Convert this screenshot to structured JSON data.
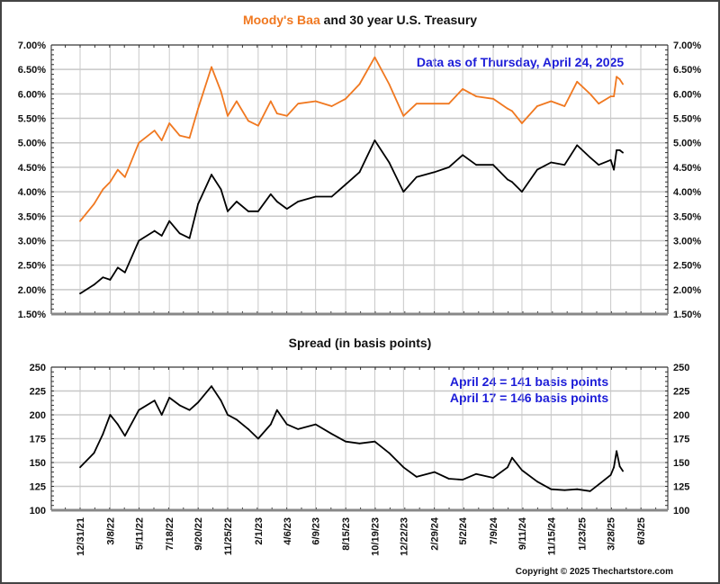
{
  "chart_data": [
    {
      "type": "line",
      "title_parts": [
        "Moody's Baa",
        " and 30 year U.S. Treasury"
      ],
      "annotation": "Data as of Thursday, April 24, 2025",
      "ylim": [
        1.5,
        7.0
      ],
      "yticks": [
        "1.50%",
        "2.00%",
        "2.50%",
        "3.00%",
        "3.50%",
        "4.00%",
        "4.50%",
        "5.00%",
        "5.50%",
        "6.00%",
        "6.50%",
        "7.00%"
      ],
      "grid": true,
      "x": [
        "2021-12-31",
        "2022-01-31",
        "2022-02-20",
        "2022-03-08",
        "2022-03-25",
        "2022-04-10",
        "2022-05-11",
        "2022-06-15",
        "2022-07-01",
        "2022-07-18",
        "2022-08-10",
        "2022-09-01",
        "2022-09-20",
        "2022-10-20",
        "2022-11-10",
        "2022-11-25",
        "2022-12-15",
        "2023-01-10",
        "2023-02-01",
        "2023-03-01",
        "2023-03-15",
        "2023-04-06",
        "2023-05-01",
        "2023-06-09",
        "2023-07-15",
        "2023-08-15",
        "2023-09-15",
        "2023-10-19",
        "2023-11-20",
        "2023-12-22",
        "2024-01-20",
        "2024-02-29",
        "2024-04-01",
        "2024-05-02",
        "2024-06-01",
        "2024-07-09",
        "2024-08-10",
        "2024-08-20",
        "2024-09-11",
        "2024-10-15",
        "2024-11-15",
        "2024-12-15",
        "2025-01-12",
        "2025-02-10",
        "2025-03-01",
        "2025-03-28",
        "2025-04-04",
        "2025-04-10",
        "2025-04-17",
        "2025-04-24"
      ],
      "series": [
        {
          "name": "Moody's Baa",
          "color": "#f07820",
          "values": [
            3.4,
            3.75,
            4.05,
            4.2,
            4.45,
            4.3,
            5.0,
            5.25,
            5.05,
            5.4,
            5.15,
            5.1,
            5.7,
            6.55,
            6.05,
            5.55,
            5.85,
            5.45,
            5.35,
            5.85,
            5.6,
            5.55,
            5.8,
            5.85,
            5.75,
            5.9,
            6.2,
            6.75,
            6.2,
            5.55,
            5.8,
            5.8,
            5.8,
            6.1,
            5.95,
            5.9,
            5.7,
            5.65,
            5.4,
            5.75,
            5.85,
            5.75,
            6.25,
            6.0,
            5.8,
            5.95,
            5.95,
            6.35,
            6.3,
            6.2
          ]
        },
        {
          "name": "30 year U.S. Treasury",
          "color": "#000000",
          "values": [
            1.92,
            2.1,
            2.25,
            2.2,
            2.45,
            2.35,
            3.0,
            3.2,
            3.1,
            3.4,
            3.15,
            3.05,
            3.75,
            4.35,
            4.05,
            3.6,
            3.8,
            3.6,
            3.6,
            3.95,
            3.8,
            3.65,
            3.8,
            3.9,
            3.9,
            4.15,
            4.4,
            5.05,
            4.6,
            4.0,
            4.3,
            4.4,
            4.5,
            4.75,
            4.55,
            4.55,
            4.25,
            4.2,
            4.0,
            4.45,
            4.6,
            4.55,
            4.95,
            4.7,
            4.55,
            4.65,
            4.45,
            4.85,
            4.85,
            4.8
          ]
        }
      ]
    },
    {
      "type": "line",
      "title": "Spread (in basis points)",
      "annotations": [
        "April 24 = 141 basis points",
        "April 17 = 146 basis points"
      ],
      "ylim": [
        100,
        250
      ],
      "yticks": [
        "100",
        "125",
        "150",
        "175",
        "200",
        "225",
        "250"
      ],
      "grid": true,
      "x": [
        "2021-12-31",
        "2022-01-31",
        "2022-02-20",
        "2022-03-08",
        "2022-03-25",
        "2022-04-10",
        "2022-05-11",
        "2022-06-15",
        "2022-07-01",
        "2022-07-18",
        "2022-08-10",
        "2022-09-01",
        "2022-09-20",
        "2022-10-20",
        "2022-11-10",
        "2022-11-25",
        "2022-12-15",
        "2023-01-10",
        "2023-02-01",
        "2023-03-01",
        "2023-03-15",
        "2023-04-06",
        "2023-05-01",
        "2023-06-09",
        "2023-07-15",
        "2023-08-15",
        "2023-09-15",
        "2023-10-19",
        "2023-11-20",
        "2023-12-22",
        "2024-01-20",
        "2024-02-29",
        "2024-04-01",
        "2024-05-02",
        "2024-06-01",
        "2024-07-09",
        "2024-08-10",
        "2024-08-20",
        "2024-09-11",
        "2024-10-15",
        "2024-11-15",
        "2024-12-15",
        "2025-01-12",
        "2025-02-10",
        "2025-03-01",
        "2025-03-28",
        "2025-04-04",
        "2025-04-10",
        "2025-04-17",
        "2025-04-24"
      ],
      "series": [
        {
          "color": "#000000",
          "values": [
            145,
            160,
            180,
            200,
            190,
            178,
            205,
            215,
            200,
            218,
            210,
            205,
            213,
            230,
            215,
            200,
            195,
            185,
            175,
            190,
            205,
            190,
            185,
            190,
            180,
            172,
            170,
            172,
            160,
            145,
            135,
            140,
            133,
            132,
            138,
            134,
            145,
            155,
            142,
            130,
            122,
            121,
            122,
            120,
            127,
            137,
            145,
            162,
            146,
            141
          ]
        }
      ]
    }
  ],
  "x_axis": {
    "tick_dates": [
      "2021-12-31",
      "2022-03-08",
      "2022-05-11",
      "2022-07-18",
      "2022-09-20",
      "2022-11-25",
      "2023-02-01",
      "2023-04-06",
      "2023-06-09",
      "2023-08-15",
      "2023-10-19",
      "2023-12-22",
      "2024-02-29",
      "2024-05-02",
      "2024-07-09",
      "2024-09-11",
      "2024-11-15",
      "2025-01-23",
      "2025-03-28",
      "2025-06-03"
    ],
    "tick_labels": [
      "12/31/21",
      "3/8/22",
      "5/11/22",
      "7/18/22",
      "9/20/22",
      "11/25/22",
      "2/1/23",
      "4/6/23",
      "6/9/23",
      "8/15/23",
      "10/19/23",
      "12/22/23",
      "2/29/24",
      "5/2/24",
      "7/9/24",
      "9/11/24",
      "11/15/24",
      "1/23/25",
      "3/28/25",
      "6/3/25"
    ]
  },
  "copyright": "Copyright © 2025 Thechartstore.com",
  "colors": {
    "annotation": "#1c1cd8",
    "grid": "#c8c8c8",
    "baa": "#f07820"
  }
}
